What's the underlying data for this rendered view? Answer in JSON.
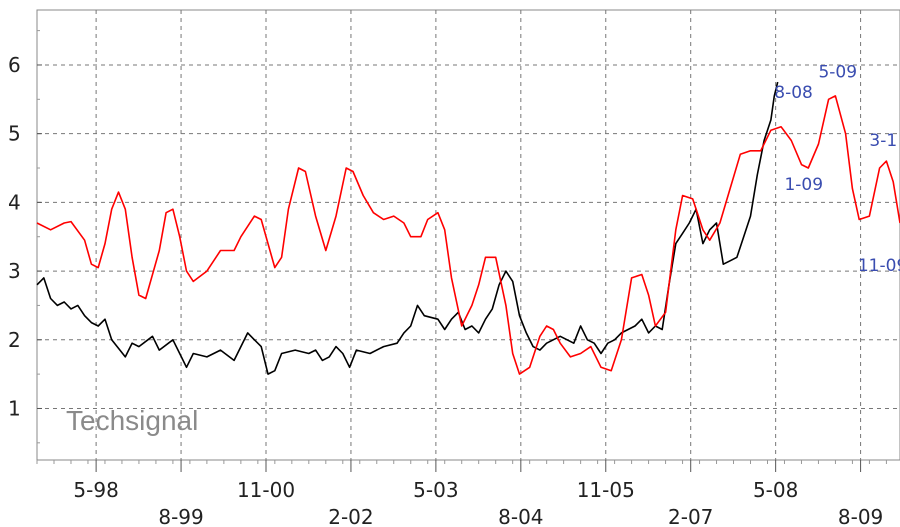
{
  "chart_data": {
    "type": "line",
    "title": "",
    "xlabel": "",
    "ylabel": "",
    "watermark": "Techsignal",
    "grid": true,
    "ylim": [
      0.25,
      6.8
    ],
    "xlim": [
      1997.5,
      2010.2
    ],
    "y_ticks": [
      1,
      2,
      3,
      4,
      5,
      6
    ],
    "x_ticks": [
      {
        "x": 1998.37,
        "label": "5-98",
        "row": 1
      },
      {
        "x": 1999.62,
        "label": "8-99",
        "row": 2
      },
      {
        "x": 2000.87,
        "label": "11-00",
        "row": 1
      },
      {
        "x": 2002.12,
        "label": "2-02",
        "row": 2
      },
      {
        "x": 2003.37,
        "label": "5-03",
        "row": 1
      },
      {
        "x": 2004.62,
        "label": "8-04",
        "row": 2
      },
      {
        "x": 2005.87,
        "label": "11-05",
        "row": 1
      },
      {
        "x": 2007.12,
        "label": "2-07",
        "row": 2
      },
      {
        "x": 2008.37,
        "label": "5-08",
        "row": 1
      },
      {
        "x": 2009.62,
        "label": "8-09",
        "row": 2
      }
    ],
    "series": [
      {
        "color": "#000000",
        "points": [
          [
            1997.5,
            2.8
          ],
          [
            1997.6,
            2.9
          ],
          [
            1997.7,
            2.6
          ],
          [
            1997.8,
            2.5
          ],
          [
            1997.9,
            2.55
          ],
          [
            1998.0,
            2.45
          ],
          [
            1998.1,
            2.5
          ],
          [
            1998.2,
            2.35
          ],
          [
            1998.3,
            2.25
          ],
          [
            1998.4,
            2.2
          ],
          [
            1998.5,
            2.3
          ],
          [
            1998.6,
            2.0
          ],
          [
            1998.8,
            1.75
          ],
          [
            1998.9,
            1.95
          ],
          [
            1999.0,
            1.9
          ],
          [
            1999.2,
            2.05
          ],
          [
            1999.3,
            1.85
          ],
          [
            1999.5,
            2.0
          ],
          [
            1999.6,
            1.8
          ],
          [
            1999.7,
            1.6
          ],
          [
            1999.8,
            1.8
          ],
          [
            2000.0,
            1.75
          ],
          [
            2000.2,
            1.85
          ],
          [
            2000.4,
            1.7
          ],
          [
            2000.6,
            2.1
          ],
          [
            2000.7,
            2.0
          ],
          [
            2000.8,
            1.9
          ],
          [
            2000.9,
            1.5
          ],
          [
            2001.0,
            1.55
          ],
          [
            2001.1,
            1.8
          ],
          [
            2001.3,
            1.85
          ],
          [
            2001.5,
            1.8
          ],
          [
            2001.6,
            1.85
          ],
          [
            2001.7,
            1.7
          ],
          [
            2001.8,
            1.75
          ],
          [
            2001.9,
            1.9
          ],
          [
            2002.0,
            1.8
          ],
          [
            2002.1,
            1.6
          ],
          [
            2002.2,
            1.85
          ],
          [
            2002.4,
            1.8
          ],
          [
            2002.6,
            1.9
          ],
          [
            2002.8,
            1.95
          ],
          [
            2002.9,
            2.1
          ],
          [
            2003.0,
            2.2
          ],
          [
            2003.1,
            2.5
          ],
          [
            2003.2,
            2.35
          ],
          [
            2003.4,
            2.3
          ],
          [
            2003.5,
            2.15
          ],
          [
            2003.6,
            2.3
          ],
          [
            2003.7,
            2.4
          ],
          [
            2003.8,
            2.15
          ],
          [
            2003.9,
            2.2
          ],
          [
            2004.0,
            2.1
          ],
          [
            2004.1,
            2.3
          ],
          [
            2004.2,
            2.45
          ],
          [
            2004.3,
            2.8
          ],
          [
            2004.4,
            3.0
          ],
          [
            2004.5,
            2.85
          ],
          [
            2004.6,
            2.35
          ],
          [
            2004.7,
            2.1
          ],
          [
            2004.8,
            1.9
          ],
          [
            2004.9,
            1.85
          ],
          [
            2005.0,
            1.95
          ],
          [
            2005.2,
            2.05
          ],
          [
            2005.4,
            1.95
          ],
          [
            2005.5,
            2.2
          ],
          [
            2005.6,
            2.0
          ],
          [
            2005.7,
            1.95
          ],
          [
            2005.8,
            1.8
          ],
          [
            2005.9,
            1.95
          ],
          [
            2006.0,
            2.0
          ],
          [
            2006.1,
            2.1
          ],
          [
            2006.3,
            2.2
          ],
          [
            2006.4,
            2.3
          ],
          [
            2006.5,
            2.1
          ],
          [
            2006.6,
            2.2
          ],
          [
            2006.7,
            2.15
          ],
          [
            2006.8,
            2.8
          ],
          [
            2006.9,
            3.4
          ],
          [
            2007.0,
            3.55
          ],
          [
            2007.1,
            3.7
          ],
          [
            2007.2,
            3.9
          ],
          [
            2007.3,
            3.4
          ],
          [
            2007.4,
            3.6
          ],
          [
            2007.5,
            3.7
          ],
          [
            2007.6,
            3.1
          ],
          [
            2007.7,
            3.15
          ],
          [
            2007.8,
            3.2
          ],
          [
            2007.9,
            3.5
          ],
          [
            2008.0,
            3.8
          ],
          [
            2008.1,
            4.4
          ],
          [
            2008.2,
            4.9
          ],
          [
            2008.3,
            5.2
          ],
          [
            2008.35,
            5.55
          ],
          [
            2008.4,
            5.75
          ]
        ]
      },
      {
        "color": "#ff0000",
        "points": [
          [
            1997.5,
            3.7
          ],
          [
            1997.7,
            3.6
          ],
          [
            1997.9,
            3.7
          ],
          [
            1998.0,
            3.72
          ],
          [
            1998.2,
            3.45
          ],
          [
            1998.3,
            3.1
          ],
          [
            1998.4,
            3.05
          ],
          [
            1998.5,
            3.4
          ],
          [
            1998.6,
            3.9
          ],
          [
            1998.7,
            4.15
          ],
          [
            1998.8,
            3.9
          ],
          [
            1998.9,
            3.2
          ],
          [
            1999.0,
            2.65
          ],
          [
            1999.1,
            2.6
          ],
          [
            1999.3,
            3.3
          ],
          [
            1999.4,
            3.85
          ],
          [
            1999.5,
            3.9
          ],
          [
            1999.6,
            3.5
          ],
          [
            1999.7,
            3.0
          ],
          [
            1999.8,
            2.85
          ],
          [
            2000.0,
            3.0
          ],
          [
            2000.2,
            3.3
          ],
          [
            2000.4,
            3.3
          ],
          [
            2000.5,
            3.5
          ],
          [
            2000.7,
            3.8
          ],
          [
            2000.8,
            3.75
          ],
          [
            2000.9,
            3.4
          ],
          [
            2001.0,
            3.05
          ],
          [
            2001.1,
            3.2
          ],
          [
            2001.2,
            3.9
          ],
          [
            2001.35,
            4.5
          ],
          [
            2001.45,
            4.45
          ],
          [
            2001.6,
            3.8
          ],
          [
            2001.75,
            3.3
          ],
          [
            2001.9,
            3.8
          ],
          [
            2002.05,
            4.5
          ],
          [
            2002.15,
            4.45
          ],
          [
            2002.3,
            4.1
          ],
          [
            2002.45,
            3.85
          ],
          [
            2002.6,
            3.75
          ],
          [
            2002.75,
            3.8
          ],
          [
            2002.9,
            3.7
          ],
          [
            2003.0,
            3.5
          ],
          [
            2003.15,
            3.5
          ],
          [
            2003.25,
            3.75
          ],
          [
            2003.4,
            3.85
          ],
          [
            2003.5,
            3.6
          ],
          [
            2003.6,
            2.9
          ],
          [
            2003.75,
            2.2
          ],
          [
            2003.9,
            2.5
          ],
          [
            2004.0,
            2.8
          ],
          [
            2004.1,
            3.2
          ],
          [
            2004.25,
            3.2
          ],
          [
            2004.4,
            2.5
          ],
          [
            2004.5,
            1.8
          ],
          [
            2004.6,
            1.5
          ],
          [
            2004.75,
            1.6
          ],
          [
            2004.9,
            2.05
          ],
          [
            2005.0,
            2.2
          ],
          [
            2005.1,
            2.15
          ],
          [
            2005.2,
            1.95
          ],
          [
            2005.35,
            1.75
          ],
          [
            2005.5,
            1.8
          ],
          [
            2005.65,
            1.9
          ],
          [
            2005.8,
            1.6
          ],
          [
            2005.95,
            1.55
          ],
          [
            2006.1,
            2.0
          ],
          [
            2006.25,
            2.9
          ],
          [
            2006.4,
            2.95
          ],
          [
            2006.5,
            2.65
          ],
          [
            2006.6,
            2.2
          ],
          [
            2006.75,
            2.4
          ],
          [
            2006.9,
            3.6
          ],
          [
            2007.0,
            4.1
          ],
          [
            2007.15,
            4.05
          ],
          [
            2007.3,
            3.6
          ],
          [
            2007.4,
            3.45
          ],
          [
            2007.55,
            3.7
          ],
          [
            2007.7,
            4.2
          ],
          [
            2007.85,
            4.7
          ],
          [
            2008.0,
            4.75
          ],
          [
            2008.15,
            4.75
          ],
          [
            2008.3,
            5.05
          ],
          [
            2008.45,
            5.1
          ],
          [
            2008.6,
            4.9
          ],
          [
            2008.75,
            4.55
          ],
          [
            2008.85,
            4.5
          ],
          [
            2009.0,
            4.85
          ],
          [
            2009.15,
            5.5
          ],
          [
            2009.25,
            5.55
          ],
          [
            2009.4,
            5.0
          ],
          [
            2009.5,
            4.2
          ],
          [
            2009.6,
            3.75
          ],
          [
            2009.75,
            3.8
          ],
          [
            2009.9,
            4.5
          ],
          [
            2010.0,
            4.6
          ],
          [
            2010.1,
            4.3
          ],
          [
            2010.2,
            3.7
          ]
        ]
      }
    ],
    "annotations": [
      {
        "text": "5-09",
        "x": 2009.0,
        "y": 5.82
      },
      {
        "text": "8-08",
        "x": 2008.35,
        "y": 5.52
      },
      {
        "text": "3-1",
        "x": 2009.75,
        "y": 4.82
      },
      {
        "text": "1-09",
        "x": 2008.5,
        "y": 4.18
      },
      {
        "text": "11-09",
        "x": 2009.58,
        "y": 3.0
      }
    ]
  }
}
